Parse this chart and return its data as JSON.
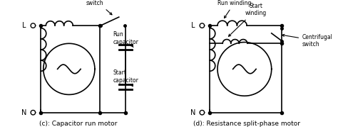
{
  "bg_color": "#ffffff",
  "line_color": "#000000",
  "lw": 1.2,
  "fig_width": 4.74,
  "fig_height": 1.96,
  "dpi": 100,
  "label_c": "(c): Capacitor run motor",
  "label_d": "(d): Resistance split-phase motor",
  "annot_centrifugal_c": "Centrifugal\nswitch",
  "annot_run_cap": "Run\ncapacitor",
  "annot_start_cap": "Start\ncapacitor",
  "annot_run_winding": "Run winding",
  "annot_start_winding": "Start\nwinding",
  "annot_centrifugal_d": "Centrifugal\nswitch"
}
